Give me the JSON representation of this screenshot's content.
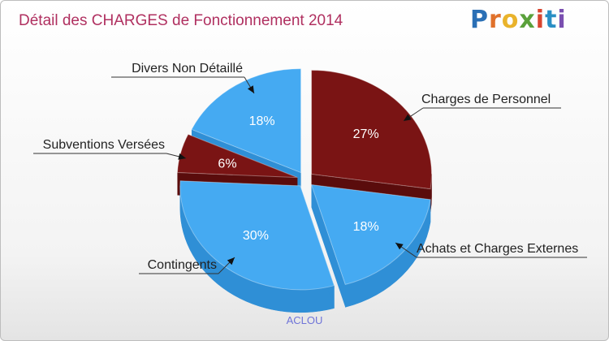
{
  "title": "Détail des CHARGES de Fonctionnement 2014",
  "logo": {
    "letters": [
      "P",
      "r",
      "o",
      "x",
      "i",
      "t",
      "i"
    ]
  },
  "commune": "ACLOU",
  "chart_data": {
    "type": "pie",
    "title": "Détail des CHARGES de Fonctionnement 2014",
    "labels": [
      "Charges de Personnel",
      "Achats et Charges Externes",
      "Contingents",
      "Subventions Versées",
      "Divers Non Détaillé"
    ],
    "values": [
      27,
      18,
      30,
      6,
      18
    ],
    "value_labels": [
      "27%",
      "18%",
      "30%",
      "6%",
      "18%"
    ],
    "colors": [
      "#7a1414",
      "#45aaf2",
      "#45aaf2",
      "#7a1414",
      "#45aaf2"
    ],
    "side_colors": [
      "#5a0c0c",
      "#2f8fd6",
      "#2f8fd6",
      "#5a0c0c",
      "#2f8fd6"
    ],
    "unit": "%",
    "exploded": true,
    "style": "3d"
  }
}
